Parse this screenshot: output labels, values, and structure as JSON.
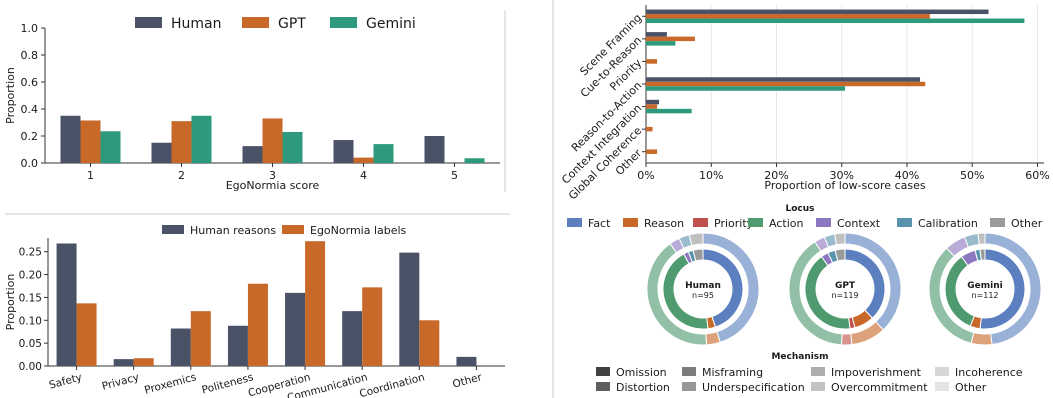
{
  "colors": {
    "human": "#4a5268",
    "gpt": "#c8692a",
    "gemini": "#2e9a7d",
    "grid": "#e6e6e6",
    "axis": "#333333",
    "divider": "#cccccc",
    "locus": {
      "Fact": "#5b7fbf",
      "Reason": "#c8692a",
      "Priority": "#c0504d",
      "Action": "#4f9a6f",
      "Context": "#8c78c0",
      "Calibration": "#5a93ad",
      "Other": "#9a9a9a"
    },
    "mechanism": {
      "Omission": "#404040",
      "Distortion": "#5e5e5e",
      "Misframing": "#7c7c7c",
      "Underspecification": "#969696",
      "Impoverishment": "#aeaeae",
      "Overcommitment": "#c2c2c2",
      "Incoherence": "#d6d6d6",
      "Other": "#e4e4e4"
    }
  },
  "chart_data": [
    {
      "id": "score-distribution",
      "type": "bar",
      "xlabel": "EgoNormia score",
      "ylabel": "Proportion",
      "categories": [
        "1",
        "2",
        "3",
        "4",
        "5"
      ],
      "ylim": [
        0,
        1.0
      ],
      "yticks": [
        "0.0",
        "0.2",
        "0.4",
        "0.6",
        "0.8",
        "1.0"
      ],
      "ytick_values": [
        0,
        0.2,
        0.4,
        0.6,
        0.8,
        1.0
      ],
      "legend": "top-center",
      "grid": false,
      "series": [
        {
          "name": "Human",
          "values": [
            0.35,
            0.15,
            0.125,
            0.17,
            0.2
          ]
        },
        {
          "name": "GPT",
          "values": [
            0.315,
            0.31,
            0.33,
            0.04,
            0
          ]
        },
        {
          "name": "Gemini",
          "values": [
            0.235,
            0.35,
            0.23,
            0.14,
            0.035
          ]
        }
      ]
    },
    {
      "id": "reason-categories",
      "type": "bar",
      "ylabel": "Proportion",
      "categories": [
        "Safety",
        "Privacy",
        "Proxemics",
        "Politeness",
        "Cooperation",
        "Communication",
        "Coordination",
        "Other"
      ],
      "ylim": [
        0,
        0.28
      ],
      "yticks": [
        "0.00",
        "0.05",
        "0.10",
        "0.15",
        "0.20",
        "0.25"
      ],
      "ytick_values": [
        0,
        0.05,
        0.1,
        0.15,
        0.2,
        0.25
      ],
      "legend": "top-center",
      "grid": false,
      "series": [
        {
          "name": "Human reasons",
          "values": [
            0.268,
            0.015,
            0.082,
            0.088,
            0.16,
            0.12,
            0.248,
            0.02
          ]
        },
        {
          "name": "EgoNormia labels",
          "values": [
            0.137,
            0.017,
            0.12,
            0.18,
            0.273,
            0.172,
            0.1,
            0
          ]
        }
      ]
    },
    {
      "id": "low-score-cases",
      "type": "bar",
      "orientation": "horizontal",
      "xlabel": "Proportion of low-score cases",
      "categories": [
        "Scene Framing",
        "Cue-to-Reason",
        "Priority",
        "Reason-to-Action",
        "Context Integration",
        "Global Coherence",
        "Other"
      ],
      "xlim": [
        0,
        0.61
      ],
      "xticks": [
        "0%",
        "10%",
        "20%",
        "30%",
        "40%",
        "50%",
        "60%"
      ],
      "xtick_values": [
        0,
        0.1,
        0.2,
        0.3,
        0.4,
        0.5,
        0.6
      ],
      "grid": true,
      "series": [
        {
          "name": "Human",
          "values": [
            0.525,
            0.032,
            0,
            0.42,
            0.02,
            0,
            0
          ]
        },
        {
          "name": "GPT",
          "values": [
            0.435,
            0.075,
            0.017,
            0.428,
            0.017,
            0.01,
            0.017
          ]
        },
        {
          "name": "Gemini",
          "values": [
            0.58,
            0.045,
            0,
            0.305,
            0.07,
            0,
            0
          ]
        }
      ]
    },
    {
      "id": "error-locus-mechanism",
      "type": "pie",
      "locus_title": "Locus",
      "mechanism_title": "Mechanism",
      "locus_legend": [
        "Fact",
        "Reason",
        "Priority",
        "Action",
        "Context",
        "Calibration",
        "Other"
      ],
      "mechanism_legend": [
        "Omission",
        "Misframing",
        "Impoverishment",
        "Incoherence",
        "Distortion",
        "Underspecification",
        "Overcommitment",
        "Other"
      ],
      "donuts": [
        {
          "name": "Human",
          "n_label": "n=95",
          "inner": {
            "Fact": 0.45,
            "Reason": 0.03,
            "Priority": 0,
            "Action": 0.44,
            "Context": 0.02,
            "Calibration": 0.02,
            "Other": 0.04
          },
          "outer": {
            "Fact": 0.45,
            "Reason": 0.04,
            "Priority": 0,
            "Action": 0.41,
            "Context": 0.03,
            "Calibration": 0.03,
            "Other": 0.04
          }
        },
        {
          "name": "GPT",
          "n_label": "n=119",
          "inner": {
            "Fact": 0.38,
            "Reason": 0.08,
            "Priority": 0.02,
            "Action": 0.42,
            "Context": 0.03,
            "Calibration": 0.03,
            "Other": 0.04
          },
          "outer": {
            "Fact": 0.38,
            "Reason": 0.1,
            "Priority": 0.03,
            "Action": 0.4,
            "Context": 0.03,
            "Calibration": 0.03,
            "Other": 0.03
          }
        },
        {
          "name": "Gemini",
          "n_label": "n=112",
          "inner": {
            "Fact": 0.52,
            "Reason": 0.04,
            "Priority": 0,
            "Action": 0.34,
            "Context": 0.06,
            "Calibration": 0.02,
            "Other": 0.02
          },
          "outer": {
            "Fact": 0.48,
            "Reason": 0.06,
            "Priority": 0,
            "Action": 0.34,
            "Context": 0.06,
            "Calibration": 0.04,
            "Other": 0.02
          }
        }
      ]
    }
  ]
}
